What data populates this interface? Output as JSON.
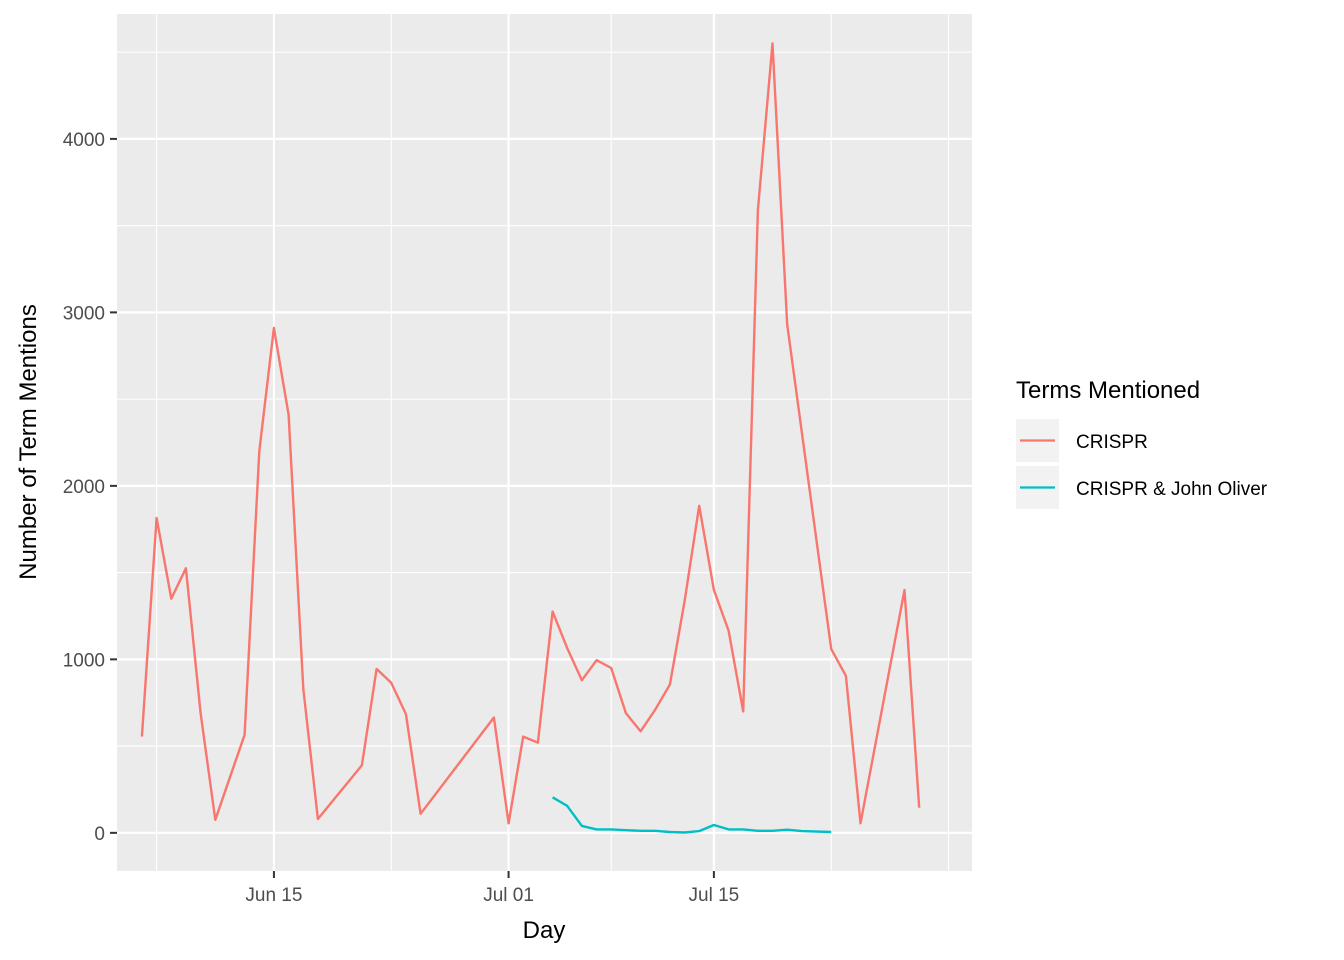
{
  "chart_data": {
    "type": "line",
    "xlabel": "Day",
    "ylabel": "Number of Term Mentions",
    "x_ticks": [
      "Jun 15",
      "Jul 01",
      "Jul 15"
    ],
    "y_ticks": [
      "0",
      "1000",
      "2000",
      "3000",
      "4000"
    ],
    "ylim": [
      -220,
      4720
    ],
    "xlim_days": [
      -0.7,
      57.6
    ],
    "x_tick_days": [
      10,
      26,
      40
    ],
    "x_reference_date": "Jun 05",
    "grid": true,
    "legend_position": "right",
    "legend_title": "Terms Mentioned",
    "colors": {
      "CRISPR": "#F8766D",
      "CRISPR & John Oliver": "#00BFC4",
      "panel": "#EBEBEB",
      "grid": "#FFFFFF"
    },
    "series": [
      {
        "name": "CRISPR",
        "color": "#F8766D",
        "x": [
          [
            "Jun 06",
            555
          ],
          [
            "Jun 07",
            1815
          ],
          [
            "Jun 08",
            1350
          ],
          [
            "Jun 09",
            1525
          ],
          [
            "Jun 10",
            690
          ],
          [
            "Jun 11",
            75
          ],
          [
            "Jun 13",
            565
          ],
          [
            "Jun 14",
            2200
          ],
          [
            "Jun 15",
            2910
          ],
          [
            "Jun 16",
            2410
          ],
          [
            "Jun 17",
            830
          ],
          [
            "Jun 18",
            80
          ],
          [
            "Jun 21",
            390
          ],
          [
            "Jun 22",
            945
          ],
          [
            "Jun 23",
            865
          ],
          [
            "Jun 24",
            685
          ],
          [
            "Jun 25",
            110
          ],
          [
            "Jun 30",
            665
          ],
          [
            "Jul 01",
            55
          ],
          [
            "Jul 02",
            555
          ],
          [
            "Jul 03",
            520
          ],
          [
            "Jul 04",
            1275
          ],
          [
            "Jul 05",
            1065
          ],
          [
            "Jul 06",
            880
          ],
          [
            "Jul 07",
            995
          ],
          [
            "Jul 08",
            950
          ],
          [
            "Jul 09",
            690
          ],
          [
            "Jul 10",
            585
          ],
          [
            "Jul 11",
            710
          ],
          [
            "Jul 12",
            855
          ],
          [
            "Jul 13",
            1335
          ],
          [
            "Jul 14",
            1885
          ],
          [
            "Jul 15",
            1400
          ],
          [
            "Jul 16",
            1165
          ],
          [
            "Jul 17",
            700
          ],
          [
            "Jul 18",
            3590
          ],
          [
            "Jul 19",
            4550
          ],
          [
            "Jul 20",
            2930
          ],
          [
            "Jul 23",
            1060
          ],
          [
            "Jul 24",
            905
          ],
          [
            "Jul 25",
            55
          ],
          [
            "Jul 28",
            1400
          ],
          [
            "Jul 29",
            145
          ]
        ],
        "values": null
      },
      {
        "name": "CRISPR & John Oliver",
        "color": "#00BFC4",
        "x": [
          [
            "Jul 04",
            205
          ],
          [
            "Jul 05",
            155
          ],
          [
            "Jul 06",
            40
          ],
          [
            "Jul 07",
            20
          ],
          [
            "Jul 08",
            20
          ],
          [
            "Jul 09",
            15
          ],
          [
            "Jul 10",
            12
          ],
          [
            "Jul 11",
            12
          ],
          [
            "Jul 12",
            5
          ],
          [
            "Jul 13",
            2
          ],
          [
            "Jul 14",
            10
          ],
          [
            "Jul 15",
            45
          ],
          [
            "Jul 16",
            20
          ],
          [
            "Jul 17",
            20
          ],
          [
            "Jul 18",
            12
          ],
          [
            "Jul 19",
            12
          ],
          [
            "Jul 20",
            18
          ],
          [
            "Jul 21",
            10
          ],
          [
            "Jul 23",
            5
          ]
        ],
        "values": null
      }
    ]
  }
}
